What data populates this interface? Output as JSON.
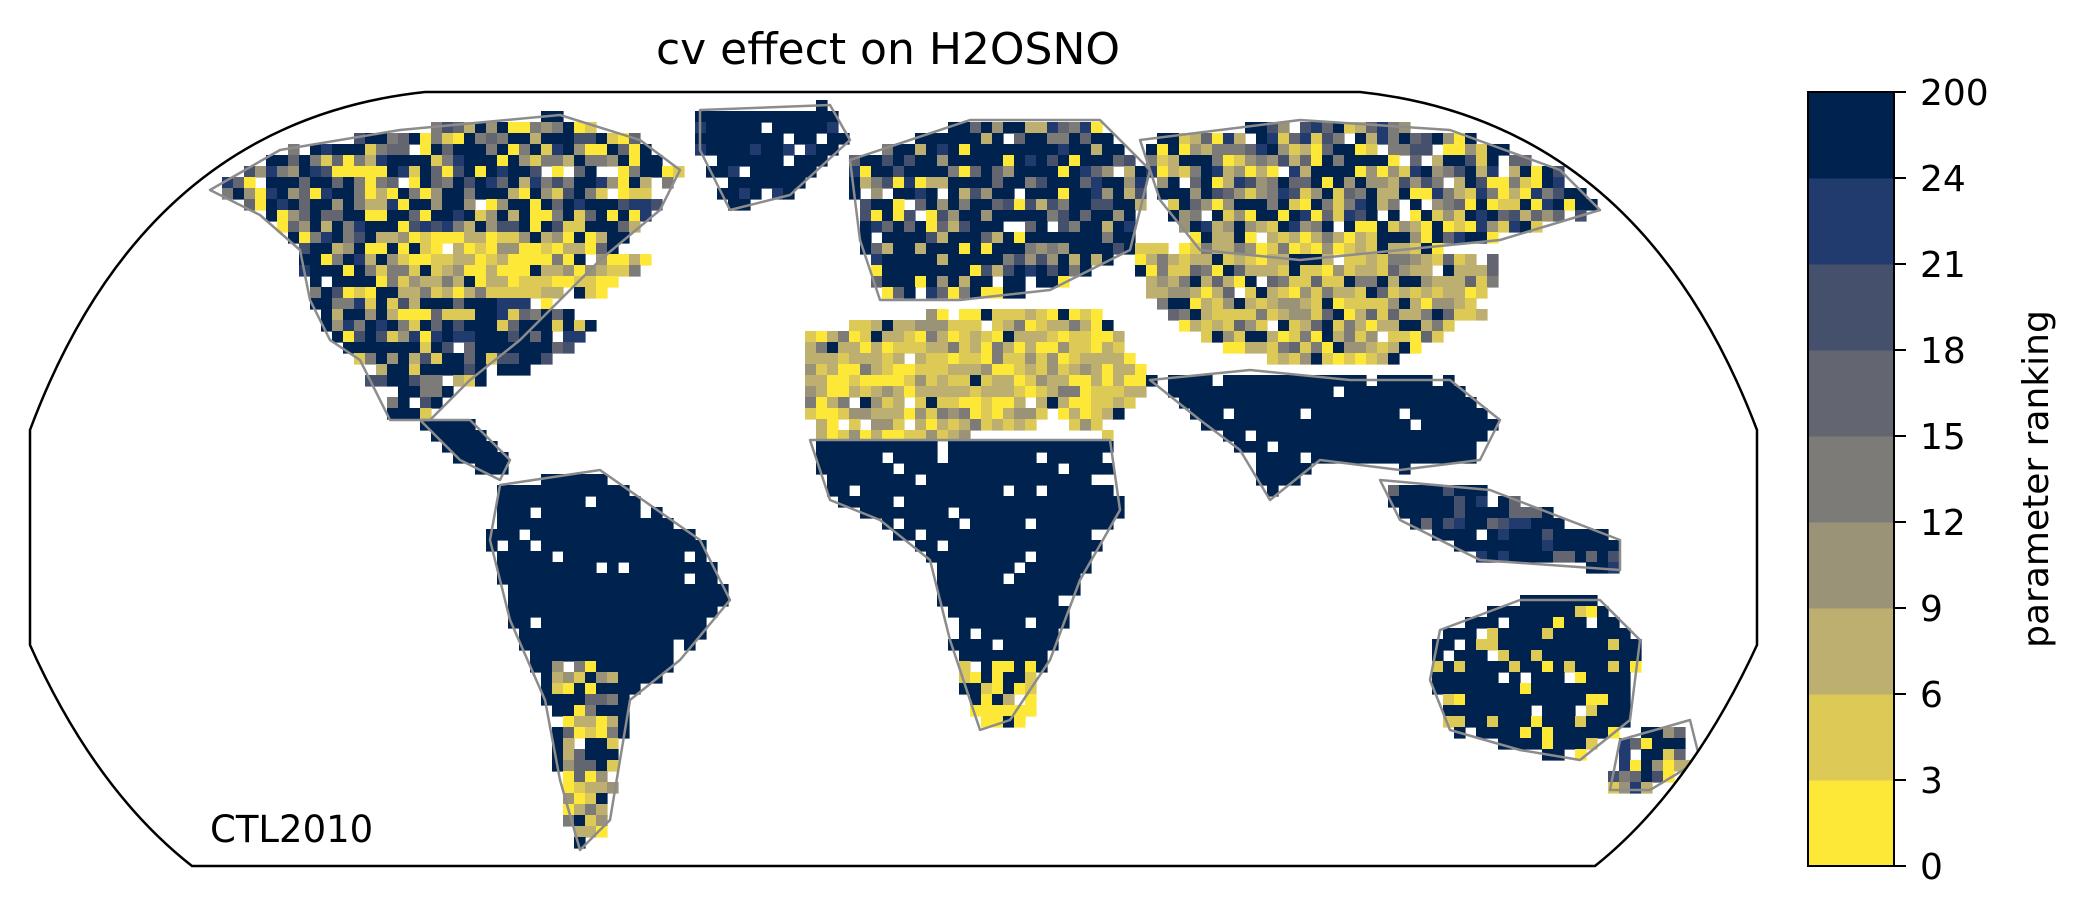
{
  "title": "cv effect on H2OSNO",
  "panel_label": "CTL2010",
  "colorbar": {
    "label": "parameter ranking",
    "ticks": [
      "0",
      "3",
      "6",
      "9",
      "12",
      "15",
      "18",
      "21",
      "24",
      "200"
    ],
    "colors": [
      "#fde737",
      "#dcc956",
      "#bcaf6f",
      "#9a9377",
      "#7c7b78",
      "#636670",
      "#45506d",
      "#223b6e",
      "#00224e"
    ]
  },
  "colors": {
    "ocean": "#ffffff",
    "frame": "#000000",
    "coastline": "#8c8c8c"
  },
  "chart_data": {
    "type": "heatmap",
    "projection": "Robinson (global)",
    "variable": "H2OSNO",
    "parameter": "cv",
    "case": "CTL2010",
    "value_bins": [
      0,
      3,
      6,
      9,
      12,
      15,
      18,
      21,
      24,
      200
    ],
    "regions": [
      {
        "name": "Alaska / NW Canada",
        "ranking_level": "mixed 3-18"
      },
      {
        "name": "Central Canada / US Midwest",
        "ranking_level": "0-6"
      },
      {
        "name": "Eastern North America",
        "ranking_level": "24-200"
      },
      {
        "name": "Greenland",
        "ranking_level": "24-200"
      },
      {
        "name": "South America",
        "ranking_level": "24-200"
      },
      {
        "name": "Patagonia / Andes",
        "ranking_level": "mixed 0-15"
      },
      {
        "name": "Europe",
        "ranking_level": "24-200"
      },
      {
        "name": "Sahara / Arabia",
        "ranking_level": "3-9"
      },
      {
        "name": "Sub-Saharan Africa",
        "ranking_level": "24-200"
      },
      {
        "name": "Southern Africa",
        "ranking_level": "0-6"
      },
      {
        "name": "Siberia",
        "ranking_level": "mixed 3-200"
      },
      {
        "name": "Central Asia / Mongolia / China",
        "ranking_level": "3-9"
      },
      {
        "name": "India / SE Asia",
        "ranking_level": "24-200"
      },
      {
        "name": "Australia",
        "ranking_level": "24-200"
      },
      {
        "name": "New Zealand",
        "ranking_level": "mixed 3-24"
      }
    ]
  }
}
